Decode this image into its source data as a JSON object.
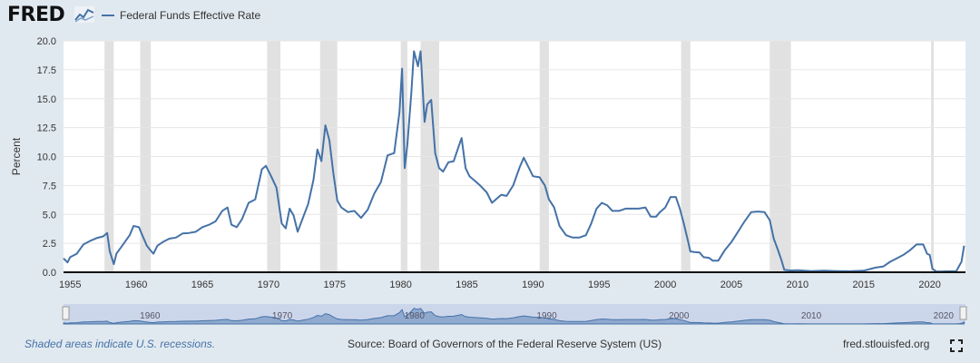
{
  "header": {
    "logo": "FRED",
    "legend_label": "Federal Funds Effective Rate"
  },
  "footer": {
    "recession_note": "Shaded areas indicate U.S. recessions.",
    "source": "Source: Board of Governors of the Federal Reserve System (US)",
    "site": "fred.stlouisfed.org",
    "fullscreen_icon": "fullscreen-icon"
  },
  "colors": {
    "line": "#4572a7",
    "recession": "#e1e1e1",
    "background": "#e1e9f0",
    "plot": "#ffffff"
  },
  "chart_data": {
    "type": "line",
    "title": "",
    "xlabel": "",
    "ylabel": "Percent",
    "xlim": [
      1954.5,
      2022.7
    ],
    "ylim": [
      0,
      20
    ],
    "y_ticks": [
      "0.0",
      "2.5",
      "5.0",
      "7.5",
      "10.0",
      "12.5",
      "15.0",
      "17.5",
      "20.0"
    ],
    "x_ticks": [
      "1955",
      "1960",
      "1965",
      "1970",
      "1975",
      "1980",
      "1985",
      "1990",
      "1995",
      "2000",
      "2005",
      "2010",
      "2015",
      "2020"
    ],
    "grid": "horizontal",
    "legend": "top-left",
    "recessions": [
      [
        1957.6,
        1958.3
      ],
      [
        1960.3,
        1961.1
      ],
      [
        1969.9,
        1970.9
      ],
      [
        1973.9,
        1975.2
      ],
      [
        1980.0,
        1980.5
      ],
      [
        1981.5,
        1982.9
      ],
      [
        1990.5,
        1991.2
      ],
      [
        2001.2,
        2001.9
      ],
      [
        2007.9,
        2009.5
      ],
      [
        2020.1,
        2020.3
      ]
    ],
    "series": [
      {
        "name": "Federal Funds Effective Rate",
        "x": [
          1954.5,
          1954.8,
          1955.0,
          1955.5,
          1956.0,
          1956.5,
          1957.0,
          1957.5,
          1957.8,
          1958.0,
          1958.3,
          1958.5,
          1959.0,
          1959.5,
          1959.8,
          1960.2,
          1960.5,
          1960.8,
          1961.0,
          1961.3,
          1961.6,
          1962.0,
          1962.5,
          1963.0,
          1963.5,
          1964.0,
          1964.5,
          1965.0,
          1965.5,
          1966.0,
          1966.5,
          1966.9,
          1967.2,
          1967.6,
          1968.0,
          1968.5,
          1969.0,
          1969.5,
          1969.8,
          1970.2,
          1970.6,
          1971.0,
          1971.3,
          1971.6,
          1971.9,
          1972.2,
          1972.6,
          1973.0,
          1973.4,
          1973.7,
          1974.0,
          1974.3,
          1974.6,
          1974.9,
          1975.2,
          1975.5,
          1976.0,
          1976.5,
          1977.0,
          1977.5,
          1978.0,
          1978.5,
          1979.0,
          1979.5,
          1979.9,
          1980.1,
          1980.3,
          1980.5,
          1980.8,
          1981.0,
          1981.3,
          1981.5,
          1981.8,
          1982.0,
          1982.3,
          1982.6,
          1982.9,
          1983.2,
          1983.6,
          1984.0,
          1984.3,
          1984.6,
          1984.9,
          1985.2,
          1985.6,
          1986.0,
          1986.5,
          1986.9,
          1987.3,
          1987.6,
          1988.0,
          1988.5,
          1989.0,
          1989.3,
          1989.7,
          1990.0,
          1990.5,
          1990.9,
          1991.2,
          1991.6,
          1992.0,
          1992.5,
          1993.0,
          1993.5,
          1994.0,
          1994.4,
          1994.8,
          1995.2,
          1995.6,
          1996.0,
          1996.5,
          1997.0,
          1997.5,
          1998.0,
          1998.5,
          1998.9,
          1999.3,
          1999.6,
          2000.0,
          2000.4,
          2000.8,
          2001.1,
          2001.4,
          2001.7,
          2001.9,
          2002.2,
          2002.6,
          2002.9,
          2003.3,
          2003.6,
          2004.0,
          2004.5,
          2005.0,
          2005.5,
          2006.0,
          2006.5,
          2007.0,
          2007.5,
          2007.9,
          2008.2,
          2008.5,
          2008.8,
          2009.0,
          2009.5,
          2010.0,
          2011.0,
          2012.0,
          2013.0,
          2014.0,
          2015.0,
          2015.9,
          2016.5,
          2017.0,
          2017.5,
          2018.0,
          2018.5,
          2019.0,
          2019.5,
          2019.8,
          2020.0,
          2020.2,
          2020.5,
          2021.0,
          2021.5,
          2022.0,
          2022.2,
          2022.4,
          2022.6
        ],
        "values": [
          1.2,
          0.85,
          1.3,
          1.6,
          2.4,
          2.7,
          2.95,
          3.1,
          3.4,
          1.8,
          0.7,
          1.6,
          2.4,
          3.2,
          4.0,
          3.9,
          3.1,
          2.3,
          2.0,
          1.6,
          2.3,
          2.6,
          2.9,
          3.0,
          3.35,
          3.4,
          3.5,
          3.9,
          4.1,
          4.4,
          5.3,
          5.6,
          4.1,
          3.9,
          4.6,
          6.0,
          6.3,
          8.9,
          9.2,
          8.3,
          7.3,
          4.2,
          3.8,
          5.5,
          4.9,
          3.5,
          4.7,
          5.9,
          8.0,
          10.6,
          9.6,
          12.7,
          11.4,
          8.6,
          6.2,
          5.6,
          5.2,
          5.3,
          4.7,
          5.4,
          6.8,
          7.8,
          10.1,
          10.3,
          13.8,
          17.6,
          9.0,
          11.0,
          15.5,
          19.1,
          17.8,
          19.1,
          13.0,
          14.5,
          14.9,
          10.3,
          9.0,
          8.7,
          9.5,
          9.6,
          10.6,
          11.6,
          9.0,
          8.3,
          7.9,
          7.5,
          6.9,
          6.0,
          6.4,
          6.7,
          6.6,
          7.5,
          9.1,
          9.9,
          9.0,
          8.3,
          8.2,
          7.5,
          6.3,
          5.6,
          4.0,
          3.2,
          3.0,
          3.0,
          3.2,
          4.2,
          5.5,
          6.0,
          5.8,
          5.3,
          5.3,
          5.5,
          5.5,
          5.5,
          5.6,
          4.8,
          4.8,
          5.2,
          5.6,
          6.5,
          6.5,
          5.5,
          4.2,
          2.8,
          1.8,
          1.75,
          1.7,
          1.3,
          1.25,
          1.0,
          1.0,
          1.9,
          2.6,
          3.5,
          4.4,
          5.2,
          5.25,
          5.2,
          4.5,
          2.9,
          2.0,
          1.0,
          0.2,
          0.15,
          0.17,
          0.1,
          0.14,
          0.1,
          0.09,
          0.13,
          0.4,
          0.5,
          0.9,
          1.2,
          1.5,
          1.9,
          2.4,
          2.4,
          1.6,
          1.5,
          0.3,
          0.06,
          0.07,
          0.09,
          0.08,
          0.5,
          0.9,
          2.3
        ]
      }
    ]
  }
}
